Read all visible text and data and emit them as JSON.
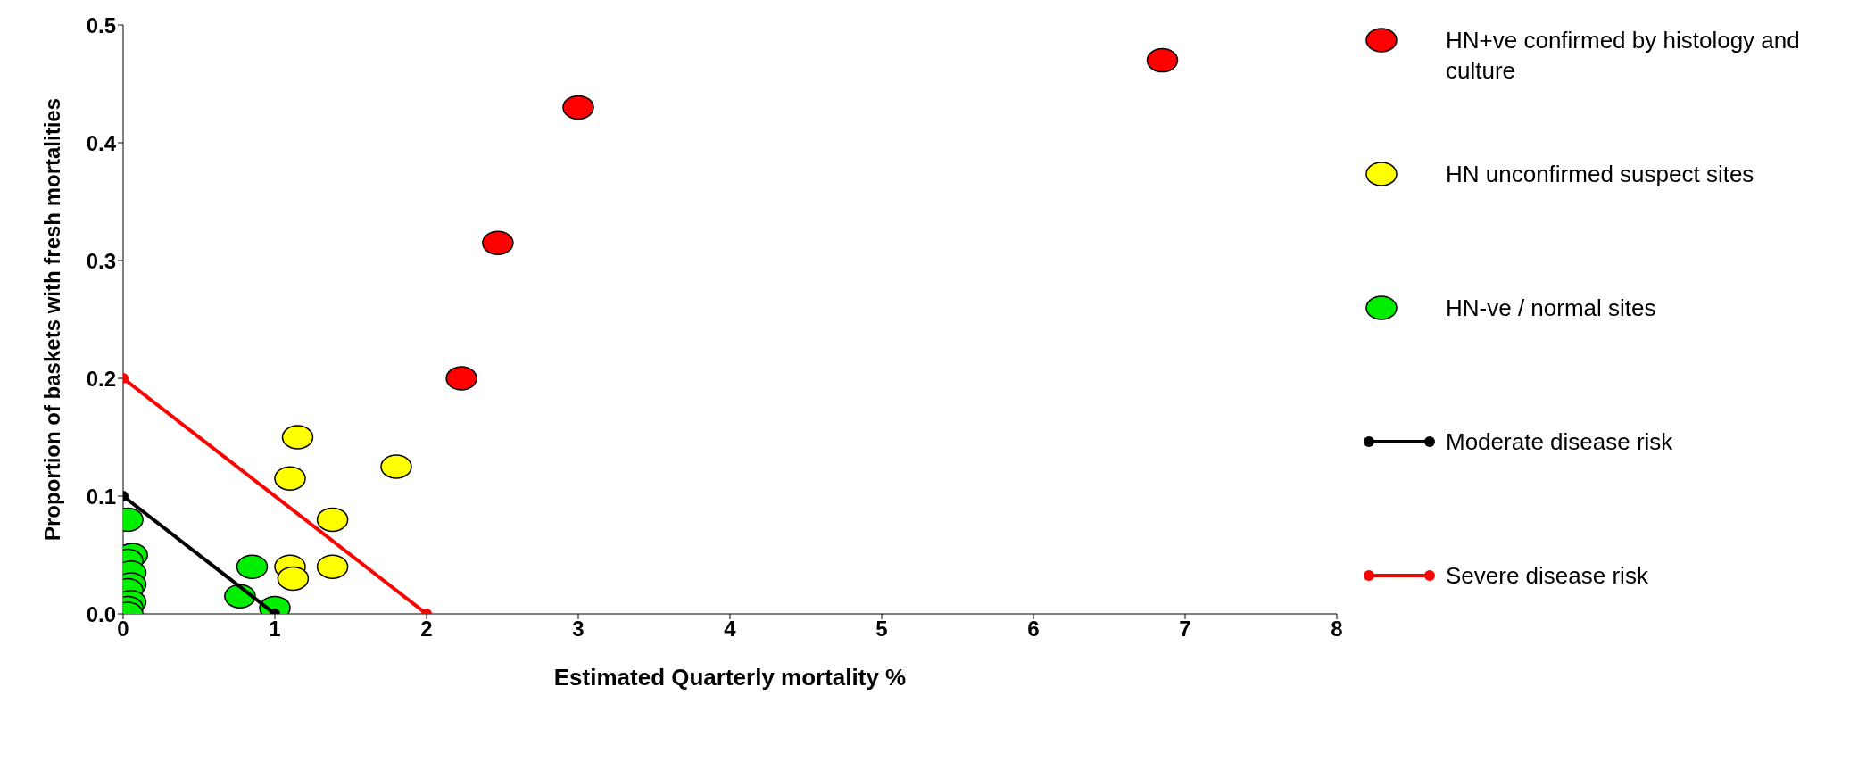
{
  "chart_data": {
    "type": "scatter",
    "xlabel": "Estimated Quarterly mortality %",
    "ylabel": "Proportion of baskets with fresh mortalities",
    "xlim": [
      0,
      8
    ],
    "xticks": [
      0,
      1,
      2,
      3,
      4,
      5,
      6,
      7,
      8
    ],
    "ylim": [
      0,
      0.5
    ],
    "yticks": [
      {
        "value": 0,
        "label": "0.0"
      },
      0.1,
      0.2,
      0.3,
      0.4,
      0.5
    ],
    "grid": false,
    "legend": "right",
    "marker": "circle",
    "series": [
      {
        "name": "HN+ve confirmed by histology and culture",
        "color": "#ff0000",
        "x": [
          2.23,
          2.47,
          3.0,
          6.85
        ],
        "values": [
          0.2,
          0.315,
          0.43,
          0.47
        ]
      },
      {
        "name": "HN unconfirmed suspect sites",
        "color": "#ffff00",
        "x": [
          1.15,
          1.1,
          1.8,
          1.38,
          1.1,
          1.12,
          1.38
        ],
        "values": [
          0.15,
          0.115,
          0.125,
          0.08,
          0.04,
          0.03,
          0.04
        ]
      },
      {
        "name": "HN-ve / normal sites",
        "color": "#00ee00",
        "x": [
          0.03,
          0.06,
          0.03,
          0.05,
          0.05,
          0.03,
          0.05,
          0.03,
          0.03,
          0.85,
          0.77,
          1.0
        ],
        "values": [
          0.08,
          0.05,
          0.045,
          0.035,
          0.025,
          0.02,
          0.01,
          0.005,
          0,
          0.04,
          0.015,
          0.005
        ]
      },
      {
        "name": "Moderate disease risk",
        "type": "line",
        "color": "#000000",
        "x": [
          0,
          1
        ],
        "values": [
          0.1,
          0
        ]
      },
      {
        "name": "Severe disease risk",
        "type": "line",
        "color": "#ff0000",
        "x": [
          0,
          2
        ],
        "values": [
          0.2,
          0
        ]
      }
    ]
  }
}
